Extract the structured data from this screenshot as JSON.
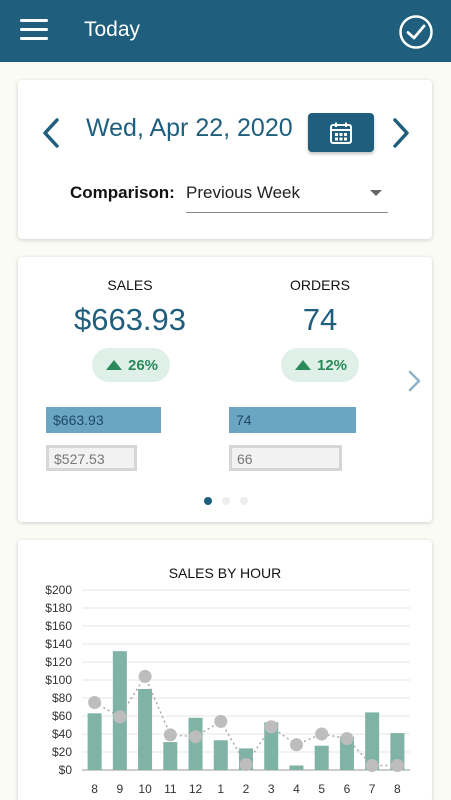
{
  "appbar": {
    "title": "Today",
    "menu_icon": "hamburger-menu-icon",
    "action_icon": "check-circle-icon"
  },
  "date_nav": {
    "date": "Wed, Apr 22, 2020",
    "prev_icon": "chevron-left-icon",
    "next_icon": "chevron-right-icon",
    "calendar_icon": "calendar-icon"
  },
  "comparison": {
    "label": "Comparison:",
    "selected": "Previous Week"
  },
  "summary": {
    "metrics": [
      {
        "label": "SALES",
        "value": "$663.93",
        "change": "26%",
        "current": "$663.93",
        "previous": "$527.53",
        "current_fraction": 1.0,
        "previous_fraction": 0.79
      },
      {
        "label": "ORDERS",
        "value": "74",
        "change": "12%",
        "current": "74",
        "previous": "66",
        "current_fraction": 1.0,
        "previous_fraction": 0.89
      }
    ],
    "page_count": 3,
    "active_page": 0
  },
  "colors": {
    "primary": "#1f5f7d",
    "bar": "#7fb3a5",
    "positive": "#2a8a5a",
    "badge_bg": "#dff0e8",
    "comparison_point": "#bdbdbd"
  },
  "chart_data": {
    "type": "bar",
    "title": "SALES BY HOUR",
    "categories": [
      "8",
      "9",
      "10",
      "11",
      "12",
      "1",
      "2",
      "3",
      "4",
      "5",
      "6",
      "7",
      "8"
    ],
    "series": [
      {
        "type": "bar",
        "values": [
          63,
          132,
          90,
          31,
          58,
          33,
          24,
          53,
          5,
          27,
          37,
          64,
          41
        ]
      },
      {
        "type": "line",
        "style": "dotted",
        "values": [
          75,
          59,
          104,
          39,
          37,
          54,
          6,
          48,
          28,
          40,
          35,
          5,
          5
        ]
      }
    ],
    "ylim": [
      0,
      200
    ],
    "yticks": [
      "$0",
      "$20",
      "$40",
      "$60",
      "$80",
      "$100",
      "$120",
      "$140",
      "$160",
      "$180",
      "$200"
    ],
    "grid": true
  }
}
